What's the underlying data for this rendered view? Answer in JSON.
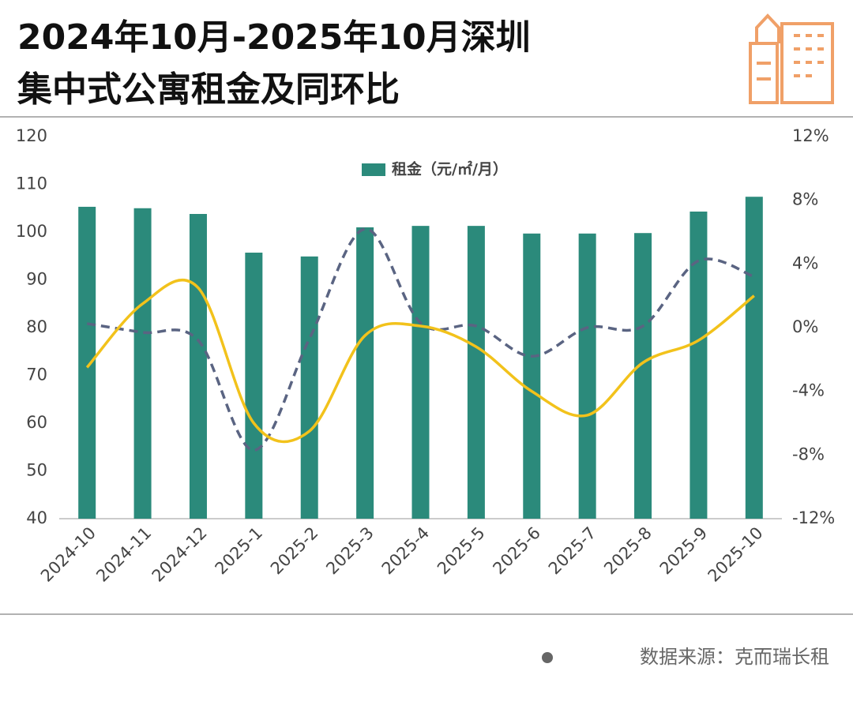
{
  "chart_data": {
    "type": "bar_line",
    "title": [
      "2024年10月-2025年10月深圳",
      "集中式公寓租金及同环比"
    ],
    "source": "数据来源：克而瑞长租",
    "categories": [
      "2024-10",
      "2024-11",
      "2024-12",
      "2025-1",
      "2025-2",
      "2025-3",
      "2025-4",
      "2025-5",
      "2025-6",
      "2025-7",
      "2025-8",
      "2025-9",
      "2025-10"
    ],
    "series": [
      {
        "name": "租金（元/㎡/月）",
        "type": "bar",
        "color": "#2b8a7b",
        "axis": "y",
        "values": [
          105.3,
          105.0,
          103.8,
          95.7,
          94.9,
          101.0,
          101.3,
          101.3,
          99.7,
          99.7,
          99.8,
          104.3,
          107.4
        ]
      },
      {
        "type": "line",
        "color": "#5a6482",
        "dashed": true,
        "axis": "y2",
        "values": [
          0.25,
          -0.3,
          -0.8,
          -7.7,
          -0.7,
          6.2,
          0.3,
          0.1,
          -1.8,
          0,
          0.1,
          4.2,
          3.2
        ]
      },
      {
        "type": "line",
        "color": "#f2c21b",
        "dashed": false,
        "axis": "y2",
        "values": [
          -2.5,
          1.5,
          2.5,
          -6,
          -6.5,
          -0.5,
          0.1,
          -1.2,
          -4,
          -5.5,
          -2.2,
          -0.8,
          2
        ]
      }
    ],
    "ylim": [
      40,
      120
    ],
    "yticks": [
      40,
      50,
      60,
      70,
      80,
      90,
      100,
      110,
      120
    ],
    "y2lim": [
      -12,
      12
    ],
    "y2ticks": [
      {
        "value": -12,
        "label": "-12%"
      },
      {
        "value": -8,
        "label": "-8%"
      },
      {
        "value": -4,
        "label": "-4%"
      },
      {
        "value": 0,
        "label": "0%"
      },
      {
        "value": 4,
        "label": "4%"
      },
      {
        "value": 8,
        "label": "8%"
      },
      {
        "value": 12,
        "label": "12%"
      }
    ],
    "grid": false,
    "legend": "top"
  }
}
